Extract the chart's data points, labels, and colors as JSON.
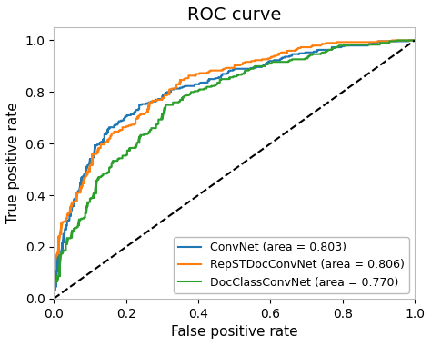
{
  "title": "ROC curve",
  "xlabel": "False positive rate",
  "ylabel": "True positive rate",
  "xlim": [
    0.0,
    1.0
  ],
  "ylim": [
    0.0,
    1.05
  ],
  "legend": [
    {
      "label": "ConvNet (area = 0.803)",
      "color": "#1f77b4"
    },
    {
      "label": "RepSTDocConvNet (area = 0.806)",
      "color": "#ff7f0e"
    },
    {
      "label": "DocClassConvNet (area = 0.770)",
      "color": "#2ca02c"
    }
  ],
  "diagonal_color": "black",
  "background_color": "#ffffff",
  "title_fontsize": 14,
  "label_fontsize": 11,
  "tick_fontsize": 10,
  "legend_fontsize": 9,
  "convnet_auc": 0.803,
  "repst_auc": 0.806,
  "docclass_auc": 0.77,
  "xticks": [
    0.0,
    0.2,
    0.4,
    0.6,
    0.8,
    1.0
  ],
  "yticks": [
    0.0,
    0.2,
    0.4,
    0.6,
    0.8,
    1.0
  ]
}
